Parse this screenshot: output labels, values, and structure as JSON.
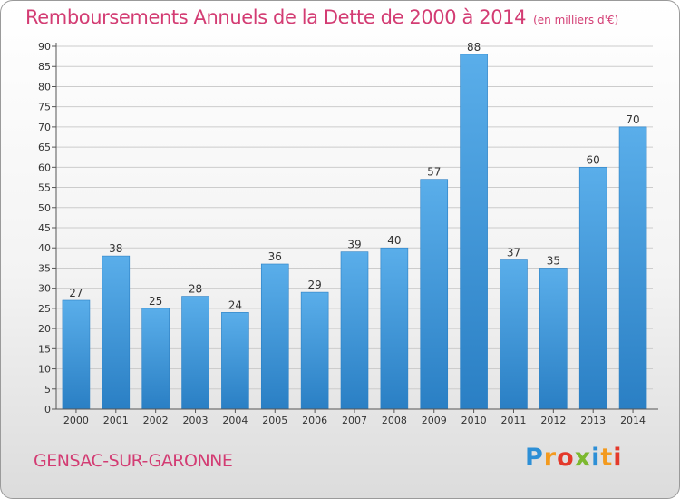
{
  "title": "Remboursements Annuels de la Dette de 2000 à 2014",
  "unit": "(en milliers d'€)",
  "town": "GENSAC-SUR-GARONNE",
  "logo": {
    "text": "Proxiti"
  },
  "colors": {
    "bar": "#3a93d6",
    "title": "#d33c73",
    "grid": "#c8c8c8"
  },
  "chart_data": {
    "type": "bar",
    "title": "Remboursements Annuels de la Dette de 2000 à 2014",
    "categories": [
      "2000",
      "2001",
      "2002",
      "2003",
      "2004",
      "2005",
      "2006",
      "2007",
      "2008",
      "2009",
      "2010",
      "2011",
      "2012",
      "2013",
      "2014"
    ],
    "values": [
      27,
      38,
      25,
      28,
      24,
      36,
      29,
      39,
      40,
      57,
      88,
      37,
      35,
      60,
      70
    ],
    "ylim": [
      0,
      90
    ],
    "yticks": [
      0,
      5,
      10,
      15,
      20,
      25,
      30,
      35,
      40,
      45,
      50,
      55,
      60,
      65,
      70,
      75,
      80,
      85,
      90
    ],
    "grid": true,
    "data_labels": true
  }
}
